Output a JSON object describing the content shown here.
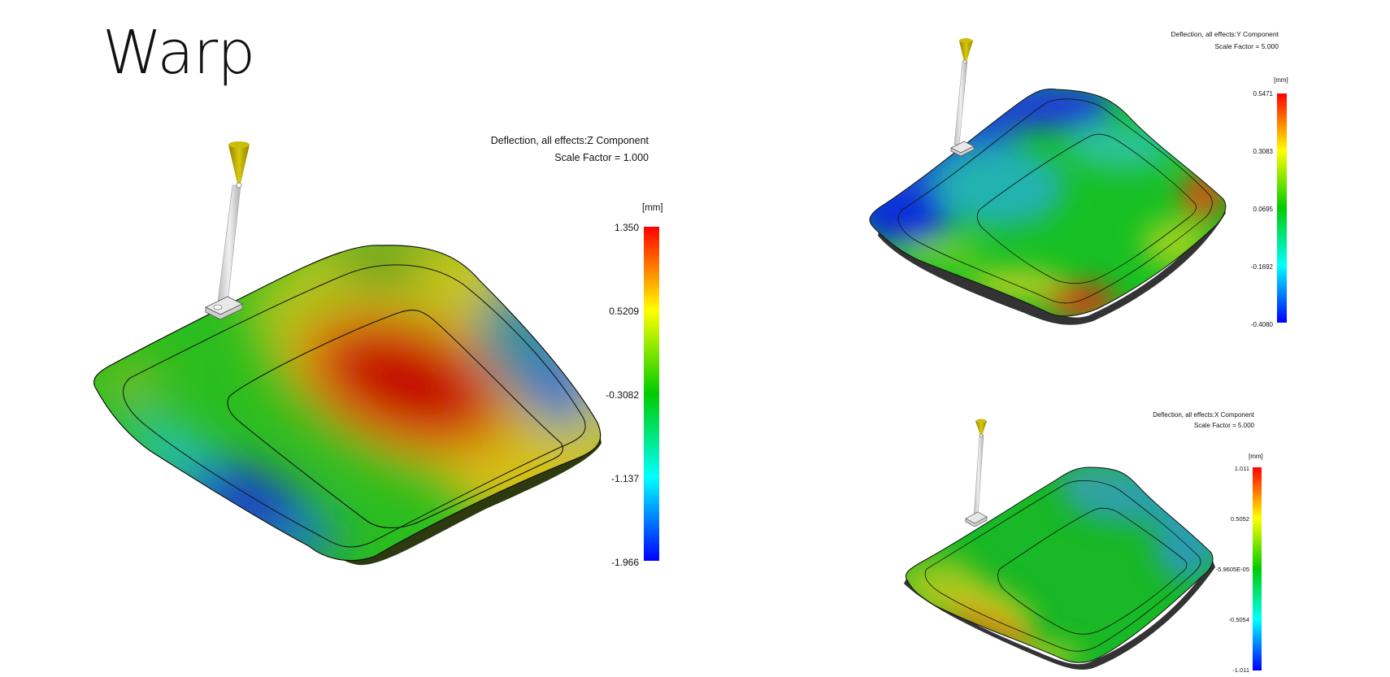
{
  "slide": {
    "title": "Warp"
  },
  "colors": {
    "scale": [
      "#0000ff",
      "#00ffff",
      "#00cc00",
      "#ffff00",
      "#ff0000"
    ],
    "part_outline": "#111111",
    "gate_cone": "#b7a600",
    "runner": "#d6d6d6"
  },
  "plots": {
    "z": {
      "result_title": "Deflection, all effects:Z Component",
      "scale_factor": "Scale Factor = 1.000",
      "unit": "[mm]",
      "ticks": [
        "1.350",
        "0.5209",
        "-0.3082",
        "-1.137",
        "-1.966"
      ]
    },
    "y": {
      "result_title": "Deflection, all effects:Y Component",
      "scale_factor": "Scale Factor = 5.000",
      "unit": "[mm]",
      "ticks": [
        "0.5471",
        "0.3083",
        "0.0695",
        "-0.1692",
        "-0.4080"
      ]
    },
    "x": {
      "result_title": "Deflection, all effects:X Component",
      "scale_factor": "Scale Factor = 5.000",
      "unit": "[mm]",
      "ticks": [
        "1.011",
        "0.5052",
        "-5.9605E-05",
        "-0.5054",
        "-1.011"
      ]
    }
  }
}
